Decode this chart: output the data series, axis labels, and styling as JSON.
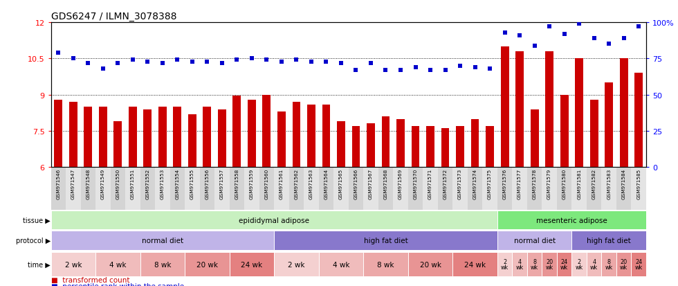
{
  "title": "GDS6247 / ILMN_3078388",
  "samples": [
    "GSM971546",
    "GSM971547",
    "GSM971548",
    "GSM971549",
    "GSM971550",
    "GSM971551",
    "GSM971552",
    "GSM971553",
    "GSM971554",
    "GSM971555",
    "GSM971556",
    "GSM971557",
    "GSM971558",
    "GSM971559",
    "GSM971560",
    "GSM971561",
    "GSM971562",
    "GSM971563",
    "GSM971564",
    "GSM971565",
    "GSM971566",
    "GSM971567",
    "GSM971568",
    "GSM971569",
    "GSM971570",
    "GSM971571",
    "GSM971572",
    "GSM971573",
    "GSM971574",
    "GSM971575",
    "GSM971576",
    "GSM971577",
    "GSM971578",
    "GSM971579",
    "GSM971580",
    "GSM971581",
    "GSM971582",
    "GSM971583",
    "GSM971584",
    "GSM971585"
  ],
  "bar_values": [
    8.8,
    8.7,
    8.5,
    8.5,
    7.9,
    8.5,
    8.4,
    8.5,
    8.5,
    8.2,
    8.5,
    8.4,
    8.95,
    8.8,
    9.0,
    8.3,
    8.7,
    8.6,
    8.6,
    7.9,
    7.7,
    7.8,
    8.1,
    8.0,
    7.7,
    7.7,
    7.6,
    7.7,
    8.0,
    7.7,
    11.0,
    10.8,
    8.4,
    10.8,
    9.0,
    10.5,
    8.8,
    9.5,
    10.5,
    9.9
  ],
  "percentile_values": [
    79,
    75,
    72,
    68,
    72,
    74,
    73,
    72,
    74,
    73,
    73,
    72,
    74,
    75,
    74,
    73,
    74,
    73,
    73,
    72,
    67,
    72,
    67,
    67,
    69,
    67,
    67,
    70,
    69,
    68,
    93,
    91,
    84,
    97,
    92,
    99,
    89,
    85,
    89,
    97
  ],
  "ylim_left": [
    6,
    12
  ],
  "ylim_right": [
    0,
    100
  ],
  "yticks_left": [
    6,
    7.5,
    9,
    10.5,
    12
  ],
  "yticks_right": [
    0,
    25,
    50,
    75,
    100
  ],
  "bar_color": "#cc0000",
  "dot_color": "#0000cc",
  "dotted_lines": [
    7.5,
    9.0,
    10.5
  ],
  "tissue_groups": [
    {
      "label": "epididymal adipose",
      "start": 0,
      "end": 29,
      "color": "#c8f0c0"
    },
    {
      "label": "mesenteric adipose",
      "start": 30,
      "end": 39,
      "color": "#7de87d"
    }
  ],
  "protocol_groups": [
    {
      "label": "normal diet",
      "start": 0,
      "end": 14,
      "color": "#c0b4e8"
    },
    {
      "label": "high fat diet",
      "start": 15,
      "end": 29,
      "color": "#8878cc"
    },
    {
      "label": "normal diet",
      "start": 30,
      "end": 34,
      "color": "#c0b4e8"
    },
    {
      "label": "high fat diet",
      "start": 35,
      "end": 39,
      "color": "#8878cc"
    }
  ],
  "time_groups": [
    {
      "label": "2 wk",
      "start": 0,
      "end": 2,
      "color": "#f4d0d0",
      "small": false
    },
    {
      "label": "4 wk",
      "start": 3,
      "end": 5,
      "color": "#f0bcbc",
      "small": false
    },
    {
      "label": "8 wk",
      "start": 6,
      "end": 8,
      "color": "#eca8a8",
      "small": false
    },
    {
      "label": "20 wk",
      "start": 9,
      "end": 11,
      "color": "#e89494",
      "small": false
    },
    {
      "label": "24 wk",
      "start": 12,
      "end": 14,
      "color": "#e48080",
      "small": false
    },
    {
      "label": "2 wk",
      "start": 15,
      "end": 17,
      "color": "#f4d0d0",
      "small": false
    },
    {
      "label": "4 wk",
      "start": 18,
      "end": 20,
      "color": "#f0bcbc",
      "small": false
    },
    {
      "label": "8 wk",
      "start": 21,
      "end": 23,
      "color": "#eca8a8",
      "small": false
    },
    {
      "label": "20 wk",
      "start": 24,
      "end": 26,
      "color": "#e89494",
      "small": false
    },
    {
      "label": "24 wk",
      "start": 27,
      "end": 29,
      "color": "#e48080",
      "small": false
    },
    {
      "label": "2\nwk",
      "start": 30,
      "end": 30,
      "color": "#f4d0d0",
      "small": true
    },
    {
      "label": "4\nwk",
      "start": 31,
      "end": 31,
      "color": "#f0bcbc",
      "small": true
    },
    {
      "label": "8\nwk",
      "start": 32,
      "end": 32,
      "color": "#eca8a8",
      "small": true
    },
    {
      "label": "20\nwk",
      "start": 33,
      "end": 33,
      "color": "#e89494",
      "small": true
    },
    {
      "label": "24\nwk",
      "start": 34,
      "end": 34,
      "color": "#e48080",
      "small": true
    },
    {
      "label": "2\nwk",
      "start": 35,
      "end": 35,
      "color": "#f4d0d0",
      "small": true
    },
    {
      "label": "4\nwk",
      "start": 36,
      "end": 36,
      "color": "#f0bcbc",
      "small": true
    },
    {
      "label": "8\nwk",
      "start": 37,
      "end": 37,
      "color": "#eca8a8",
      "small": true
    },
    {
      "label": "20\nwk",
      "start": 38,
      "end": 38,
      "color": "#e89494",
      "small": true
    },
    {
      "label": "24\nwk",
      "start": 39,
      "end": 39,
      "color": "#e48080",
      "small": true
    }
  ],
  "legend_items": [
    {
      "label": "transformed count",
      "color": "#cc0000"
    },
    {
      "label": "percentile rank within the sample",
      "color": "#0000cc"
    }
  ]
}
